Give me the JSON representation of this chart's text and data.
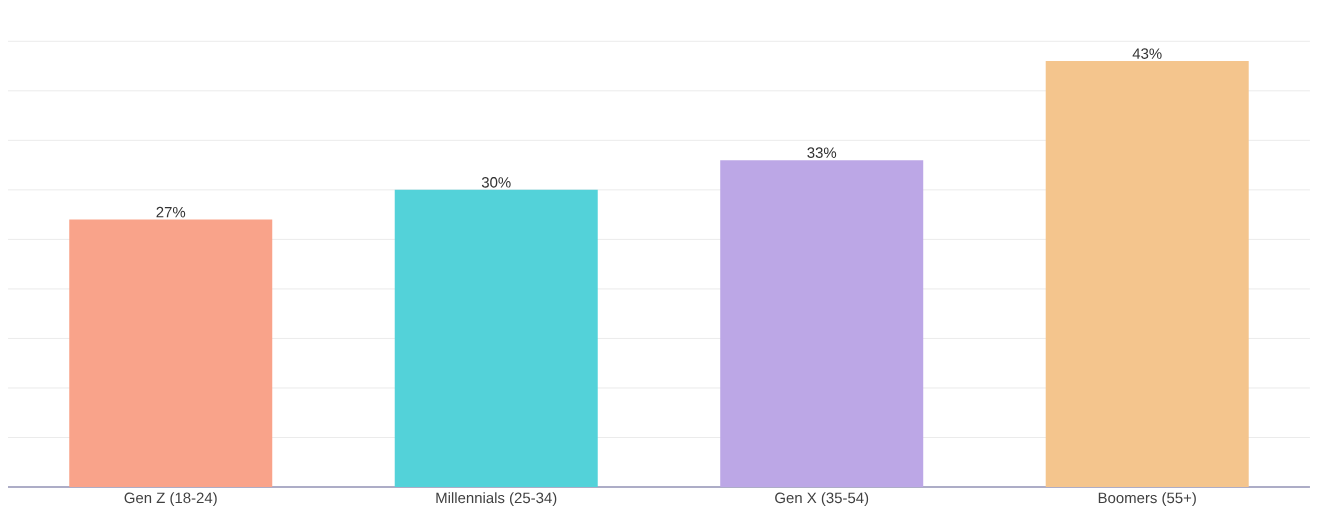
{
  "chart_data": {
    "type": "bar",
    "categories": [
      "Gen Z (18-24)",
      "Millennials (25-34)",
      "Gen X (35-54)",
      "Boomers (55+)"
    ],
    "values": [
      27,
      30,
      33,
      43
    ],
    "value_labels": [
      "27%",
      "30%",
      "33%",
      "43%"
    ],
    "colors": [
      "#f9a38a",
      "#53d2d9",
      "#bca7e6",
      "#f4c58d"
    ],
    "grid": "y",
    "tick_labels": "x"
  }
}
